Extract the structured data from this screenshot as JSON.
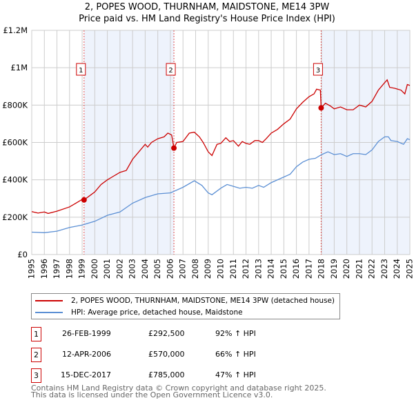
{
  "chart_data": {
    "type": "line",
    "title": "2, POPES WOOD, THURNHAM, MAIDSTONE, ME14 3PW",
    "subtitle": "Price paid vs. HM Land Registry's House Price Index (HPI)",
    "xlim": [
      1995,
      2025
    ],
    "ylim": [
      0,
      1200000
    ],
    "x_ticks": [
      "1995",
      "1996",
      "1997",
      "1998",
      "1999",
      "2000",
      "2001",
      "2002",
      "2003",
      "2004",
      "2005",
      "2006",
      "2007",
      "2008",
      "2009",
      "2010",
      "2011",
      "2012",
      "2013",
      "2014",
      "2015",
      "2016",
      "2017",
      "2018",
      "2019",
      "2020",
      "2021",
      "2022",
      "2023",
      "2024",
      "2025"
    ],
    "y_ticks": [
      {
        "v": 0,
        "label": "£0"
      },
      {
        "v": 200000,
        "label": "£200K"
      },
      {
        "v": 400000,
        "label": "£400K"
      },
      {
        "v": 600000,
        "label": "£600K"
      },
      {
        "v": 800000,
        "label": "£800K"
      },
      {
        "v": 1000000,
        "label": "£1M"
      },
      {
        "v": 1200000,
        "label": "£1.2M"
      }
    ],
    "grid": true,
    "series": [
      {
        "name": "2, POPES WOOD, THURNHAM, MAIDSTONE, ME14 3PW (detached house)",
        "color": "#cc0000",
        "points": [
          [
            1995,
            230
          ],
          [
            1995.5,
            222
          ],
          [
            1996,
            228
          ],
          [
            1996.3,
            220
          ],
          [
            1997,
            232
          ],
          [
            1998,
            255
          ],
          [
            1998.5,
            275
          ],
          [
            1999,
            295
          ],
          [
            1999.15,
            292.5
          ],
          [
            1999.5,
            310
          ],
          [
            2000,
            335
          ],
          [
            2000.5,
            375
          ],
          [
            2001,
            400
          ],
          [
            2001.5,
            420
          ],
          [
            2002,
            440
          ],
          [
            2002.5,
            450
          ],
          [
            2003,
            510
          ],
          [
            2003.5,
            550
          ],
          [
            2004,
            590
          ],
          [
            2004.2,
            575
          ],
          [
            2004.5,
            600
          ],
          [
            2005,
            620
          ],
          [
            2005.5,
            630
          ],
          [
            2005.8,
            650
          ],
          [
            2006.1,
            640
          ],
          [
            2006.28,
            570
          ],
          [
            2006.5,
            600
          ],
          [
            2007,
            605
          ],
          [
            2007.5,
            650
          ],
          [
            2007.9,
            655
          ],
          [
            2008.3,
            630
          ],
          [
            2008.6,
            600
          ],
          [
            2009,
            550
          ],
          [
            2009.3,
            530
          ],
          [
            2009.7,
            590
          ],
          [
            2010,
            595
          ],
          [
            2010.4,
            625
          ],
          [
            2010.7,
            605
          ],
          [
            2011,
            610
          ],
          [
            2011.4,
            580
          ],
          [
            2011.7,
            605
          ],
          [
            2012,
            595
          ],
          [
            2012.3,
            590
          ],
          [
            2012.7,
            610
          ],
          [
            2013,
            610
          ],
          [
            2013.3,
            600
          ],
          [
            2013.6,
            620
          ],
          [
            2014,
            650
          ],
          [
            2014.5,
            670
          ],
          [
            2015,
            700
          ],
          [
            2015.5,
            725
          ],
          [
            2016,
            780
          ],
          [
            2016.5,
            815
          ],
          [
            2017,
            845
          ],
          [
            2017.4,
            860
          ],
          [
            2017.6,
            885
          ],
          [
            2017.9,
            880
          ],
          [
            2017.96,
            785
          ],
          [
            2018.3,
            810
          ],
          [
            2018.7,
            795
          ],
          [
            2019,
            780
          ],
          [
            2019.5,
            790
          ],
          [
            2020,
            775
          ],
          [
            2020.5,
            775
          ],
          [
            2021,
            800
          ],
          [
            2021.5,
            790
          ],
          [
            2022,
            820
          ],
          [
            2022.5,
            880
          ],
          [
            2023,
            920
          ],
          [
            2023.2,
            935
          ],
          [
            2023.4,
            895
          ],
          [
            2023.8,
            890
          ],
          [
            2024.3,
            880
          ],
          [
            2024.6,
            860
          ],
          [
            2024.8,
            910
          ],
          [
            2025,
            905
          ]
        ]
      },
      {
        "name": "HPI: Average price, detached house, Maidstone",
        "color": "#5b8fd4",
        "points": [
          [
            1995,
            120
          ],
          [
            1996,
            117
          ],
          [
            1997,
            125
          ],
          [
            1998,
            145
          ],
          [
            1999,
            158
          ],
          [
            2000,
            178
          ],
          [
            2001,
            210
          ],
          [
            2002,
            228
          ],
          [
            2003,
            275
          ],
          [
            2004,
            305
          ],
          [
            2005,
            325
          ],
          [
            2006,
            330
          ],
          [
            2007,
            360
          ],
          [
            2007.9,
            395
          ],
          [
            2008.5,
            370
          ],
          [
            2009,
            330
          ],
          [
            2009.3,
            320
          ],
          [
            2010,
            355
          ],
          [
            2010.5,
            375
          ],
          [
            2011,
            365
          ],
          [
            2011.5,
            355
          ],
          [
            2012,
            360
          ],
          [
            2012.5,
            355
          ],
          [
            2013,
            370
          ],
          [
            2013.4,
            360
          ],
          [
            2014,
            385
          ],
          [
            2015,
            415
          ],
          [
            2015.5,
            430
          ],
          [
            2016,
            470
          ],
          [
            2016.5,
            495
          ],
          [
            2017,
            510
          ],
          [
            2017.5,
            515
          ],
          [
            2018,
            535
          ],
          [
            2018.5,
            550
          ],
          [
            2019,
            535
          ],
          [
            2019.5,
            540
          ],
          [
            2020,
            525
          ],
          [
            2020.5,
            540
          ],
          [
            2021,
            540
          ],
          [
            2021.5,
            535
          ],
          [
            2022,
            560
          ],
          [
            2022.5,
            605
          ],
          [
            2023,
            630
          ],
          [
            2023.3,
            630
          ],
          [
            2023.5,
            610
          ],
          [
            2024,
            605
          ],
          [
            2024.5,
            590
          ],
          [
            2024.8,
            620
          ],
          [
            2025,
            615
          ]
        ]
      }
    ],
    "units_note": "points values in £ thousands",
    "sales": [
      {
        "n": "1",
        "x": 1999.15,
        "y": 292.5,
        "date": "26-FEB-1999",
        "price": "£292,500",
        "hpi": "92% ↑ HPI"
      },
      {
        "n": "2",
        "x": 2006.28,
        "y": 570,
        "date": "12-APR-2006",
        "price": "£570,000",
        "hpi": "66% ↑ HPI"
      },
      {
        "n": "3",
        "x": 2017.96,
        "y": 785,
        "date": "15-DEC-2017",
        "price": "£785,000",
        "hpi": "47% ↑ HPI"
      }
    ]
  },
  "legend": {
    "red": "2, POPES WOOD, THURNHAM, MAIDSTONE, ME14 3PW (detached house)",
    "blue": "HPI: Average price, detached house, Maidstone"
  },
  "footer": {
    "line1": "Contains HM Land Registry data © Crown copyright and database right 2025.",
    "line2": "This data is licensed under the Open Government Licence v3.0."
  }
}
